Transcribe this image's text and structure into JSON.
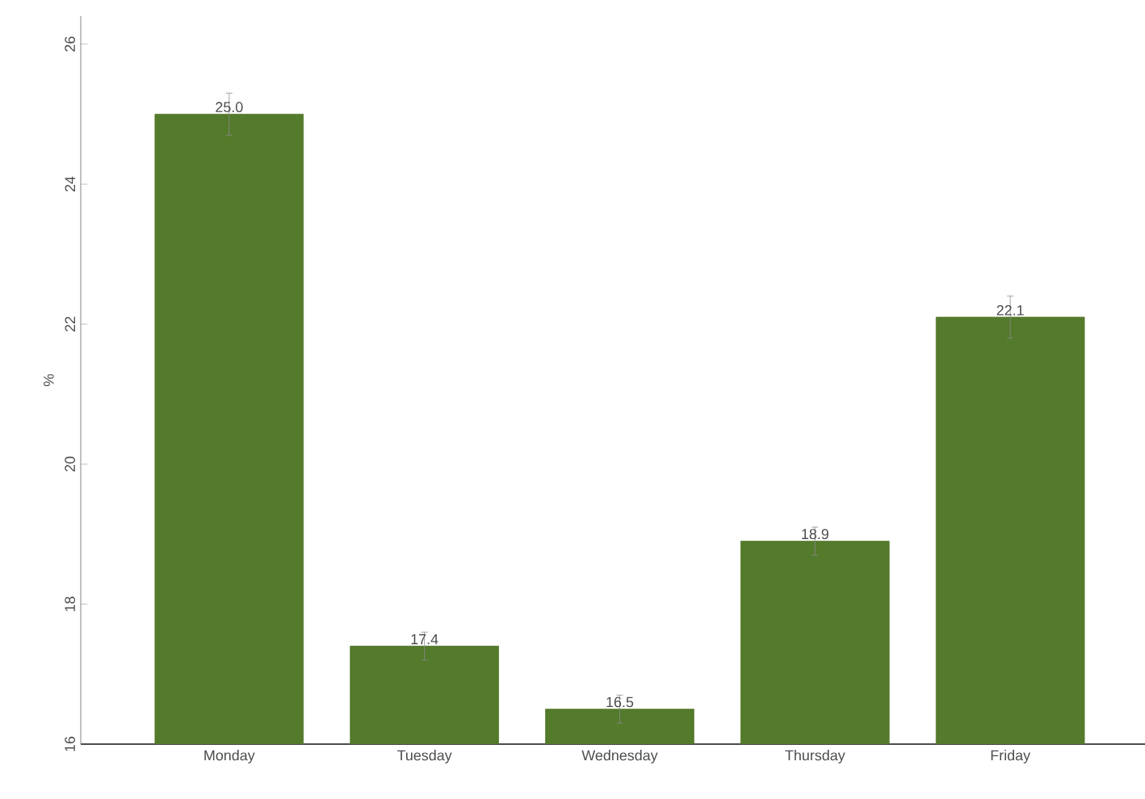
{
  "chart_data": {
    "type": "bar",
    "ylabel": "%",
    "categories": [
      "Monday",
      "Tuesday",
      "Wednesday",
      "Thursday",
      "Friday"
    ],
    "values": [
      25.0,
      17.4,
      16.5,
      18.9,
      22.1
    ],
    "errors": [
      0.3,
      0.2,
      0.2,
      0.2,
      0.3
    ],
    "value_labels": [
      "25.0",
      "17.4",
      "16.5",
      "18.9",
      "22.1"
    ],
    "color": "#547a2c",
    "ylim": [
      16,
      26.4
    ],
    "yticks": [
      16,
      18,
      20,
      22,
      24,
      26
    ],
    "grid": false
  }
}
